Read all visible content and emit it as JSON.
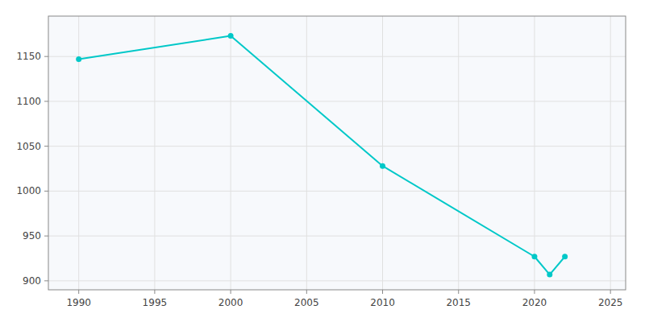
{
  "chart_data": {
    "type": "line",
    "x": [
      1990,
      2000,
      2010,
      2020,
      2021,
      2022
    ],
    "values": [
      1147,
      1173,
      1028,
      927,
      907,
      927
    ],
    "color": "#00c8c8",
    "marker": "circle",
    "xlim": [
      1988,
      2026
    ],
    "ylim": [
      890,
      1195
    ],
    "xticks": [
      1990,
      1995,
      2000,
      2005,
      2010,
      2015,
      2020,
      2025
    ],
    "yticks": [
      900,
      950,
      1000,
      1050,
      1100,
      1150
    ],
    "grid": true
  }
}
